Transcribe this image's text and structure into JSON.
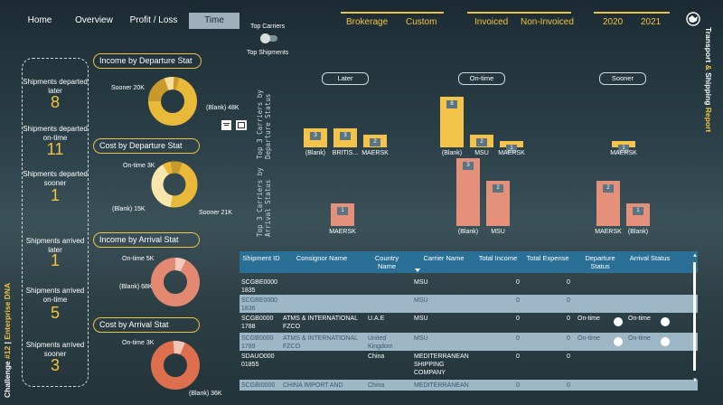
{
  "nav": {
    "tabs": [
      {
        "label": "Home"
      },
      {
        "label": "Overview"
      },
      {
        "label": "Profit / Loss"
      },
      {
        "label": "Time"
      }
    ],
    "filters": {
      "type": [
        "Brokerage",
        "Custom"
      ],
      "invoice": [
        "Invoiced",
        "Non-Invoiced"
      ],
      "year": [
        "2020",
        "2021"
      ]
    },
    "toggle": {
      "top": "Top Carriers",
      "bottom": "Top Shipments"
    }
  },
  "kpis": [
    {
      "label": "Shipments departed later",
      "value": "8"
    },
    {
      "label": "Shipments departed on-time",
      "value": "11"
    },
    {
      "label": "Shipments departed sooner",
      "value": "1"
    },
    {
      "label": "Shipments arrived later",
      "value": "1"
    },
    {
      "label": "Shipments arrived on-time",
      "value": "5"
    },
    {
      "label": "Shipments arrived sooner",
      "value": "3"
    }
  ],
  "donuts": [
    {
      "title": "Income by Departure Stat",
      "labels": [
        "Sooner 20K",
        "(Blank) 48K"
      ],
      "color": "#e9b93a"
    },
    {
      "title": "Cost by Departure Stat",
      "labels": [
        "On-time 3K",
        "(Blank) 15K",
        "Sooner 21K"
      ],
      "color": "#f0c95a"
    },
    {
      "title": "Income by Arrival Stat",
      "labels": [
        "On-time 5K",
        "(Blank) 68K"
      ],
      "color": "#e38972"
    },
    {
      "title": "Cost by Arrival Stat",
      "labels": [
        "On-time 3K",
        "(Blank) 36K"
      ],
      "color": "#dd6f4e"
    }
  ],
  "bars": {
    "departure_title": "Top 3 Carriers by Departure Status",
    "arrival_title": "Top 3 Carriers by Arrival Status",
    "groups": [
      "Later",
      "On-time",
      "Sooner"
    ],
    "departure": [
      [
        {
          "cat": "(Blank)",
          "value": 3
        },
        {
          "cat": "BRITIS...",
          "value": 3
        },
        {
          "cat": "MAERSK",
          "value": 2
        }
      ],
      [
        {
          "cat": "(Blank)",
          "value": 8
        },
        {
          "cat": "MSU",
          "value": 2
        },
        {
          "cat": "MAERSK",
          "value": 1
        }
      ],
      [
        {
          "cat": "MAERSK",
          "value": 1
        }
      ]
    ],
    "arrival": [
      [
        {
          "cat": "MAERSK",
          "value": 1
        }
      ],
      [
        {
          "cat": "(Blank)",
          "value": 3
        },
        {
          "cat": "MSU",
          "value": 2
        }
      ],
      [
        {
          "cat": "MAERSK",
          "value": 2
        },
        {
          "cat": "(Blank)",
          "value": 1
        }
      ]
    ]
  },
  "table": {
    "headers": [
      "Shipment ID",
      "Consignor Name",
      "Country Name",
      "Carrier Name",
      "Total Income",
      "Total Expense",
      "Departure Status",
      "Arrival Status"
    ],
    "rows": [
      {
        "id": "SCGBE0000 1835",
        "consignor": "",
        "country": "",
        "carrier": "MSU",
        "income": "0",
        "expense": "0",
        "dep": "",
        "arr": ""
      },
      {
        "id": "SCGBE0000 1836",
        "consignor": "",
        "country": "",
        "carrier": "MSU",
        "income": "0",
        "expense": "0",
        "dep": "",
        "arr": ""
      },
      {
        "id": "SCGB0000 1788",
        "consignor": "ATMS & INTERNATIONAL FZCO",
        "country": "U.A.E",
        "carrier": "MSU",
        "income": "0",
        "expense": "0",
        "dep": "On-time",
        "arr": "On-time"
      },
      {
        "id": "SCGB0000 1789",
        "consignor": "ATMS & INTERNATIONAL FZCO",
        "country": "United Kingdom",
        "carrier": "MSU",
        "income": "0",
        "expense": "0",
        "dep": "On-time",
        "arr": "On-time"
      },
      {
        "id": "SDAUO000 01855",
        "consignor": "",
        "country": "China",
        "carrier": "MEDITERRANEAN SHIPPING COMPANY",
        "income": "0",
        "expense": "0",
        "dep": "",
        "arr": ""
      },
      {
        "id": "SCGBI0000",
        "consignor": "CHINA IMPORT AND",
        "country": "China",
        "carrier": "MEDITERRANEAN",
        "income": "0",
        "expense": "0",
        "dep": "",
        "arr": ""
      }
    ]
  },
  "side_title": {
    "a": "Transport ",
    "b": "&",
    "c": " Shipping ",
    "d": "Report"
  },
  "challenge": {
    "a": "Challenge ",
    "b": "#12",
    "c": " | ",
    "d": "Enterprise DNA"
  }
}
